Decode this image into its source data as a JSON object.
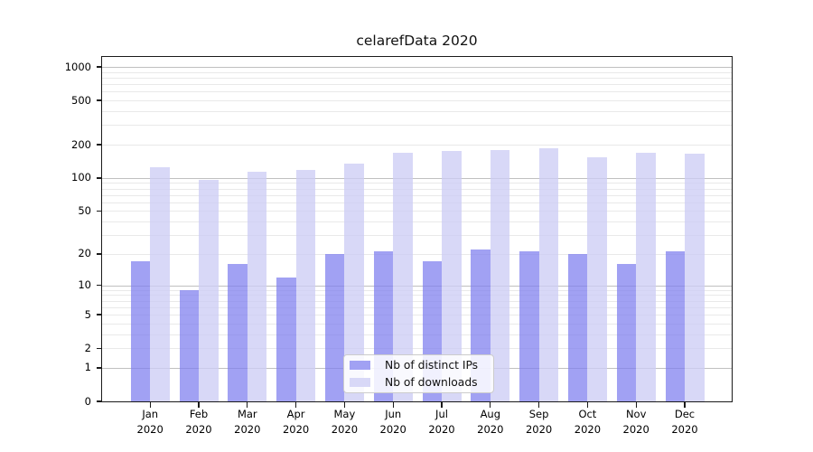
{
  "chart_data": {
    "type": "bar",
    "title": "celarefData 2020",
    "categories": [
      "Jan",
      "Feb",
      "Mar",
      "Apr",
      "May",
      "Jun",
      "Jul",
      "Aug",
      "Sep",
      "Oct",
      "Nov",
      "Dec"
    ],
    "category_year": "2020",
    "series": [
      {
        "name": "Nb of distinct IPs",
        "color": "#a1a1f3",
        "bar_fill": "rgba(125,125,238,0.72)",
        "values": [
          17,
          9,
          16,
          12,
          20,
          21,
          17,
          22,
          21,
          20,
          16,
          21
        ]
      },
      {
        "name": "Nb of downloads",
        "color": "#d8d8f7",
        "bar_fill": "rgba(205,205,245,0.78)",
        "values": [
          125,
          97,
          114,
          118,
          134,
          170,
          174,
          178,
          185,
          155,
          168,
          167
        ]
      }
    ],
    "y_axis": {
      "scale": "symlog-log1p",
      "ticks": [
        0,
        1,
        2,
        5,
        10,
        20,
        50,
        100,
        200,
        500,
        1000
      ],
      "max": 1230,
      "grid_on": true,
      "grid_major": [
        1,
        10,
        100,
        1000
      ],
      "grid_minor": [
        2,
        3,
        4,
        5,
        6,
        7,
        8,
        9,
        20,
        30,
        40,
        50,
        60,
        70,
        80,
        90,
        200,
        300,
        400,
        500,
        600,
        700,
        800,
        900
      ]
    },
    "legend": {
      "position": "bottom-center",
      "items": [
        "Nb of distinct IPs",
        "Nb of downloads"
      ]
    },
    "colors": {
      "grid_major": "#c0c0c0",
      "grid_minor": "#e9e9e9",
      "spine": "#1a1a1a",
      "text": "#000000",
      "legend_border": "#cccccc",
      "legend_bg": "rgba(255,255,255,0.85)"
    }
  }
}
